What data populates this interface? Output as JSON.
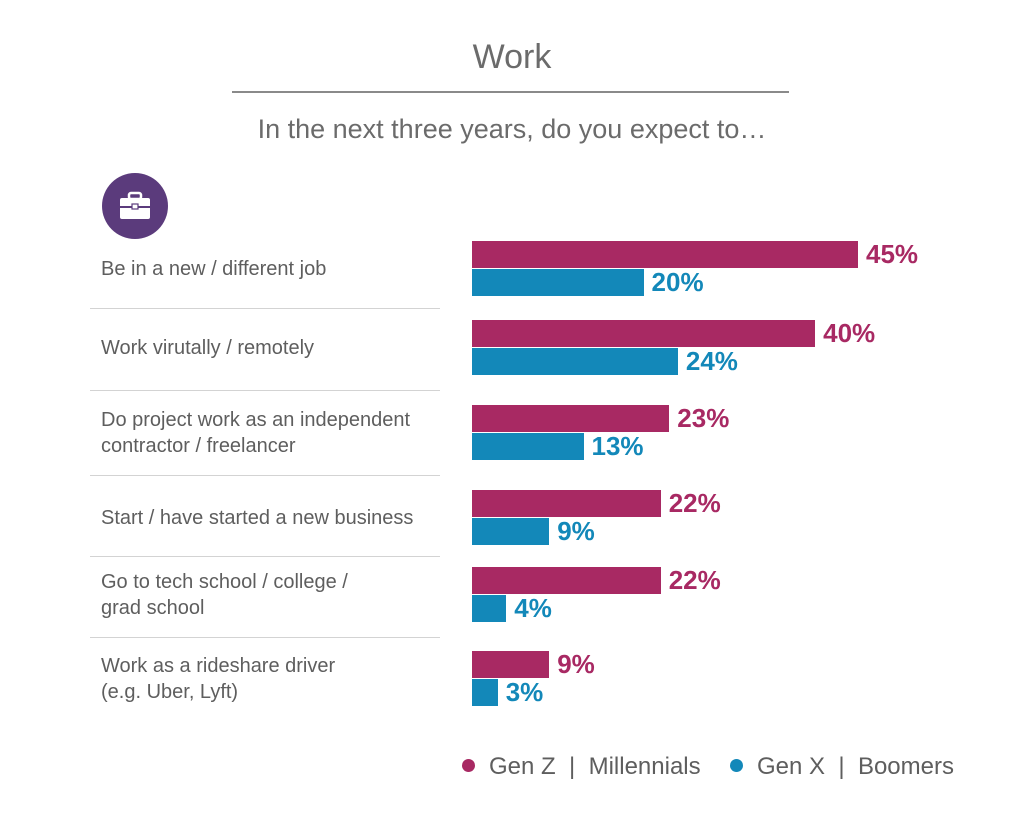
{
  "header": {
    "title": "Work",
    "subtitle": "In the next three years, do you expect to…",
    "icon": "briefcase-icon"
  },
  "colors": {
    "genz_millennials": "#a82963",
    "genx_boomers": "#1388b9",
    "icon_background": "#5b3b7c"
  },
  "legend": {
    "genz_millennials": "Gen Z  |  Millennials",
    "genx_boomers": "Gen X  |  Boomers"
  },
  "chart_data": {
    "type": "bar",
    "orientation": "horizontal",
    "title": "Work",
    "subtitle": "In the next three years, do you expect to…",
    "categories": [
      [
        "Be in a new / different job"
      ],
      [
        "Work virutally / remotely"
      ],
      [
        "Do project work as an independent",
        "contractor / freelancer"
      ],
      [
        "Start / have started a new business"
      ],
      [
        "Go to tech school / college /",
        "grad school"
      ],
      [
        "Work as a rideshare driver",
        "(e.g. Uber, Lyft)"
      ]
    ],
    "series": [
      {
        "name": "Gen Z  |  Millennials",
        "values": [
          45,
          40,
          23,
          22,
          22,
          9
        ],
        "labels": [
          "45%",
          "40%",
          "23%",
          "22%",
          "22%",
          "9%"
        ]
      },
      {
        "name": "Gen X  |  Boomers",
        "values": [
          20,
          24,
          13,
          9,
          4,
          3
        ],
        "labels": [
          "20%",
          "24%",
          "13%",
          "9%",
          "4%",
          "3%"
        ]
      }
    ],
    "xlim": [
      0,
      45
    ],
    "grid": false,
    "legend_position": "bottom-right"
  }
}
